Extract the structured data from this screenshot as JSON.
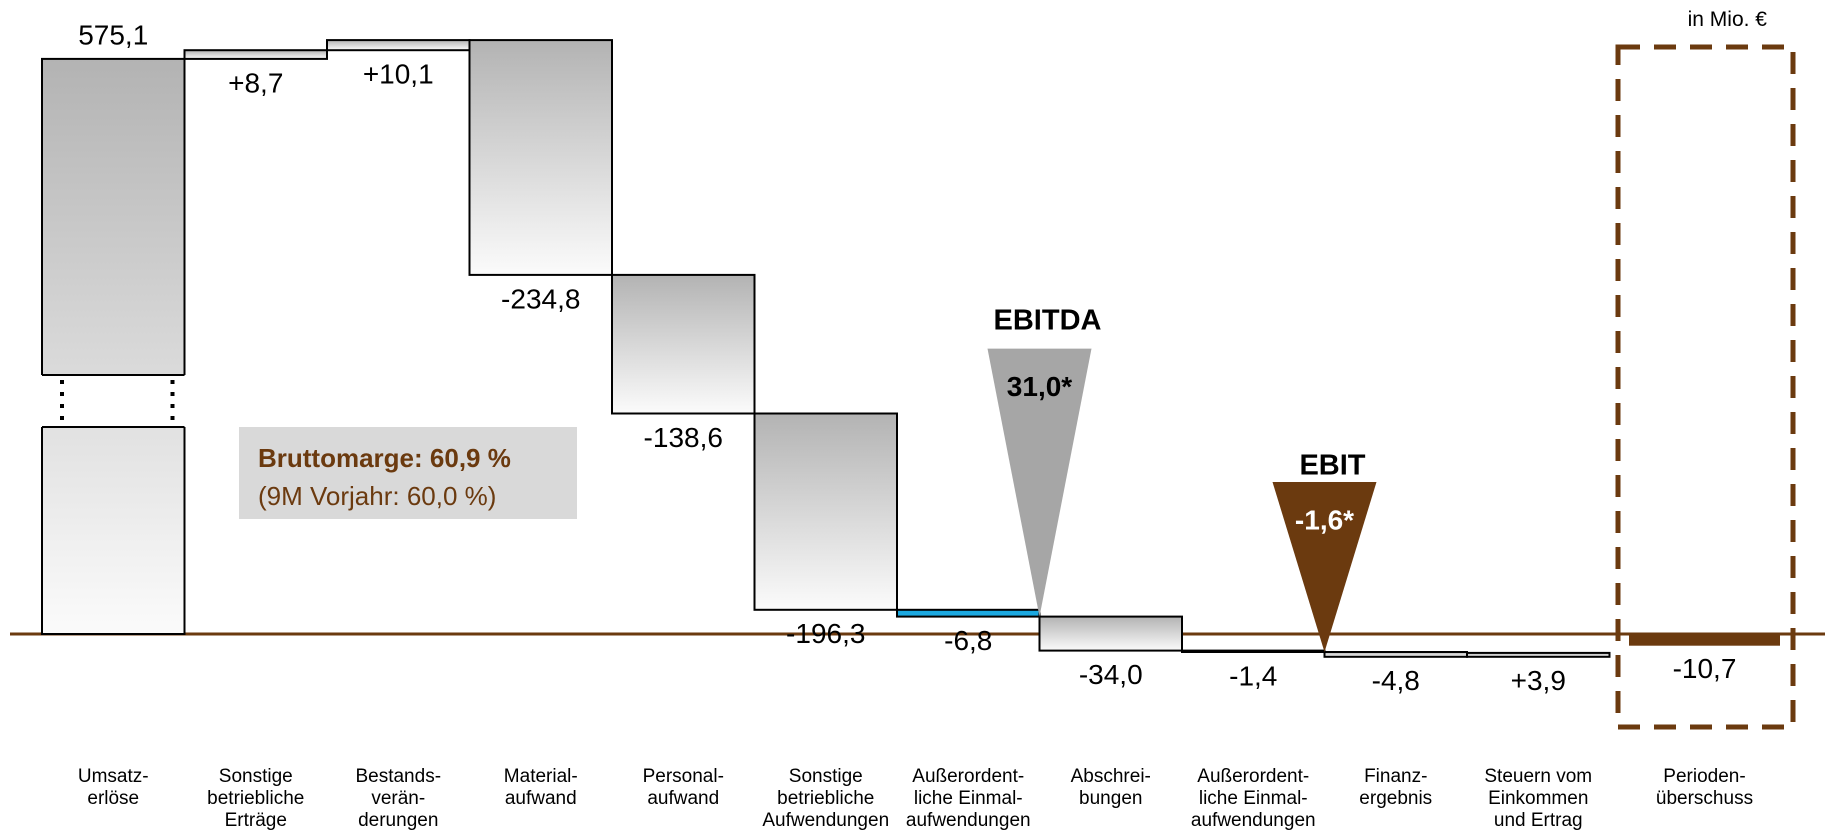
{
  "chart_data": {
    "type": "waterfall",
    "unit_note": "in Mio. €",
    "categories": [
      "Umsatz-\nerlöse",
      "Sonstige\nbetriebliche\nErträge",
      "Bestands-\nverän-\nderungen",
      "Material-\naufwand",
      "Personal-\naufwand",
      "Sonstige\nbetriebliche\nAufwendungen",
      "Außerordent-\nliche Einmal-\naufwendungen",
      "Abschrei-\nbungen",
      "Außerordent-\nliche Einmal-\naufwendungen",
      "Finanz-\nergebnis",
      "Steuern vom\nEinkommen\nund Ertrag",
      "Perioden-\nüberschuss"
    ],
    "measure": [
      "absolute",
      "relative",
      "relative",
      "relative",
      "relative",
      "relative",
      "relative",
      "relative",
      "relative",
      "relative",
      "relative",
      "absolute"
    ],
    "values": [
      575.1,
      8.7,
      10.1,
      -234.8,
      -138.6,
      -196.3,
      -6.8,
      -34.0,
      -1.4,
      -4.8,
      3.9,
      -10.7
    ],
    "value_labels": [
      "575,1",
      "+8,7",
      "+10,1",
      "-234,8",
      "-138,6",
      "-196,3",
      "-6,8",
      "-34,0",
      "-1,4",
      "-4,8",
      "+3,9",
      "-10,7"
    ],
    "colors": [
      "#b3b3b3",
      "#b3b3b3",
      "#b3b3b3",
      "#b3b3b3",
      "#b3b3b3",
      "#b3b3b3",
      "#1ba9e1",
      "#b3b3b3",
      "#1ba9e1",
      "#b3b3b3",
      "#b3b3b3",
      "#6b3a0f"
    ],
    "annotations": [
      {
        "label": "EBITDA",
        "value": 31.0,
        "value_label": "31,0*",
        "color": "#a6a6a6"
      },
      {
        "label": "EBIT",
        "value": -1.6,
        "value_label": "-1,6*",
        "color": "#6b3a0f"
      }
    ],
    "margin_box": {
      "title": "Bruttomarge: 60,9 %",
      "subtitle": "(9M Vorjahr: 60,0 %)"
    }
  }
}
